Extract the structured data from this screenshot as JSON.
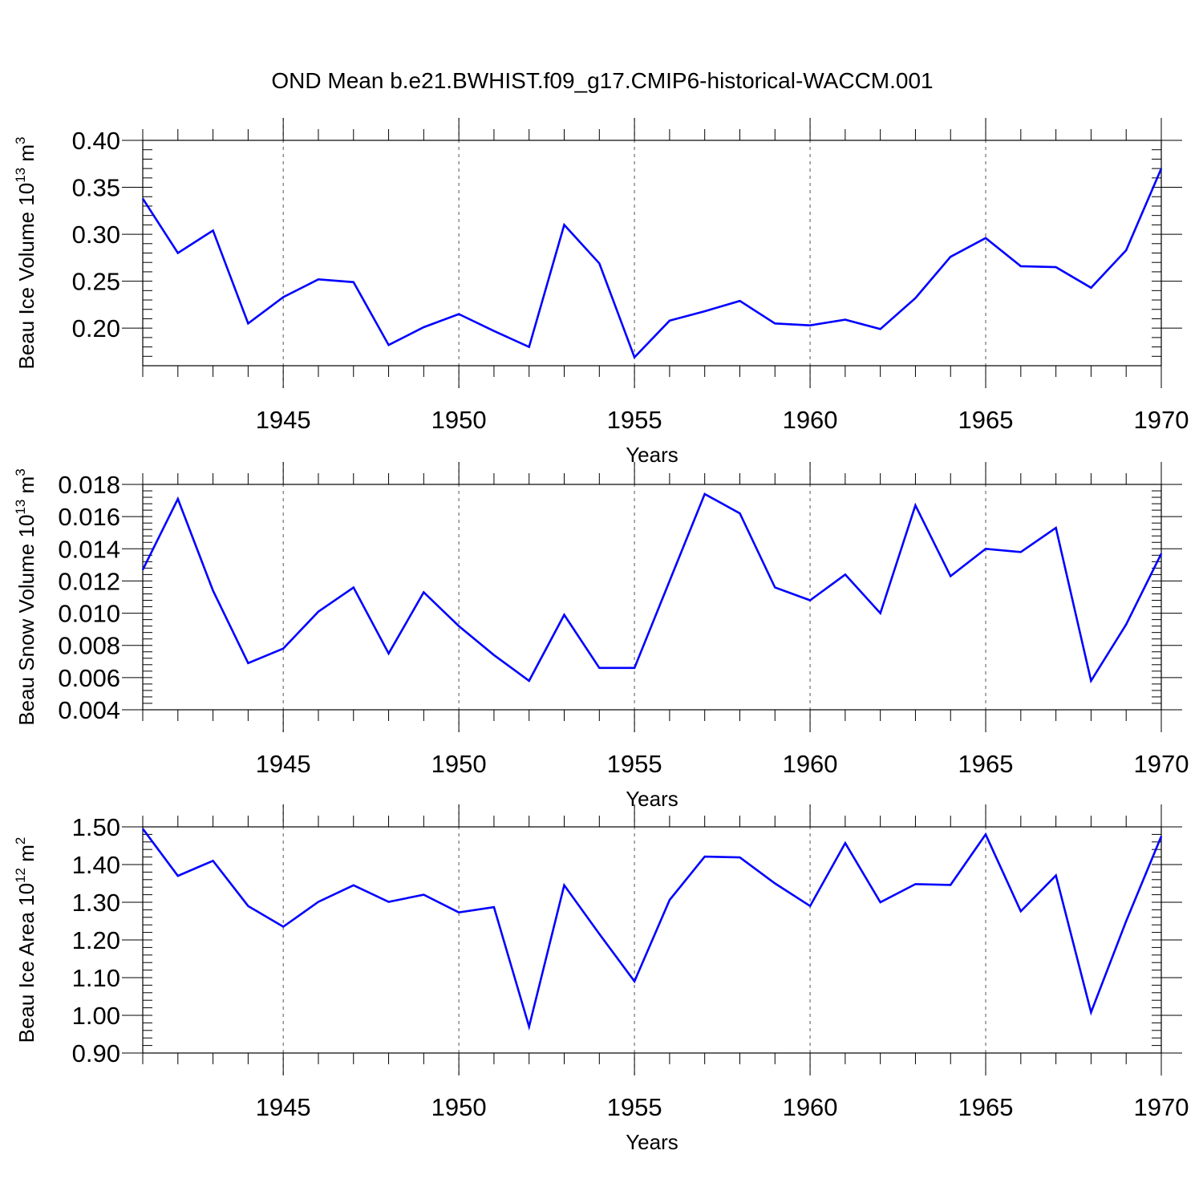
{
  "title": "OND Mean b.e21.BWHIST.f09_g17.CMIP6-historical-WACCM.001",
  "line_color": "#0000ff",
  "chart_data": [
    {
      "type": "line",
      "ylabel_main": "Beau Ice Volume 10",
      "ylabel_exp": "13",
      "ylabel_unit": " m",
      "ylabel_unit_exp": "3",
      "xlabel": "Years",
      "xlim": [
        1941,
        1970
      ],
      "ylim": [
        0.16,
        0.4
      ],
      "yticks": [
        0.2,
        0.25,
        0.3,
        0.35,
        0.4
      ],
      "ytick_labels": [
        "0.20",
        "0.25",
        "0.30",
        "0.35",
        "0.40"
      ],
      "xticks": [
        1945,
        1950,
        1955,
        1960,
        1965,
        1970
      ],
      "xtick_labels": [
        "1945",
        "1950",
        "1955",
        "1960",
        "1965",
        "1970"
      ],
      "x": [
        1941,
        1942,
        1943,
        1944,
        1945,
        1946,
        1947,
        1948,
        1949,
        1950,
        1951,
        1952,
        1953,
        1954,
        1955,
        1956,
        1957,
        1958,
        1959,
        1960,
        1961,
        1962,
        1963,
        1964,
        1965,
        1966,
        1967,
        1968,
        1969,
        1970
      ],
      "values": [
        0.338,
        0.28,
        0.304,
        0.205,
        0.233,
        0.252,
        0.249,
        0.182,
        0.201,
        0.215,
        0.197,
        0.18,
        0.31,
        0.269,
        0.169,
        0.208,
        0.218,
        0.229,
        0.205,
        0.203,
        0.209,
        0.199,
        0.232,
        0.276,
        0.296,
        0.266,
        0.265,
        0.243,
        0.283,
        0.37
      ]
    },
    {
      "type": "line",
      "ylabel_main": "Beau Snow Volume 10",
      "ylabel_exp": "13",
      "ylabel_unit": " m",
      "ylabel_unit_exp": "3",
      "xlabel": "Years",
      "xlim": [
        1941,
        1970
      ],
      "ylim": [
        0.004,
        0.018
      ],
      "yticks": [
        0.004,
        0.006,
        0.008,
        0.01,
        0.012,
        0.014,
        0.016,
        0.018
      ],
      "ytick_labels": [
        "0.004",
        "0.006",
        "0.008",
        "0.010",
        "0.012",
        "0.014",
        "0.016",
        "0.018"
      ],
      "xticks": [
        1945,
        1950,
        1955,
        1960,
        1965,
        1970
      ],
      "xtick_labels": [
        "1945",
        "1950",
        "1955",
        "1960",
        "1965",
        "1970"
      ],
      "x": [
        1941,
        1942,
        1943,
        1944,
        1945,
        1946,
        1947,
        1948,
        1949,
        1950,
        1951,
        1952,
        1953,
        1954,
        1955,
        1956,
        1957,
        1958,
        1959,
        1960,
        1961,
        1962,
        1963,
        1964,
        1965,
        1966,
        1967,
        1968,
        1969,
        1970
      ],
      "values": [
        0.0127,
        0.0171,
        0.0114,
        0.0069,
        0.0078,
        0.0101,
        0.0116,
        0.0075,
        0.0113,
        0.0092,
        0.0074,
        0.0058,
        0.0099,
        0.0066,
        0.0066,
        0.012,
        0.0174,
        0.0162,
        0.0116,
        0.0108,
        0.0124,
        0.01,
        0.0167,
        0.0123,
        0.014,
        0.0138,
        0.0153,
        0.0058,
        0.0093,
        0.0137
      ]
    },
    {
      "type": "line",
      "ylabel_main": "Beau Ice Area 10",
      "ylabel_exp": "12",
      "ylabel_unit": " m",
      "ylabel_unit_exp": "2",
      "xlabel": "Years",
      "xlim": [
        1941,
        1970
      ],
      "ylim": [
        0.9,
        1.5
      ],
      "yticks": [
        0.9,
        1.0,
        1.1,
        1.2,
        1.3,
        1.4,
        1.5
      ],
      "ytick_labels": [
        "0.90",
        "1.00",
        "1.10",
        "1.20",
        "1.30",
        "1.40",
        "1.50"
      ],
      "xticks": [
        1945,
        1950,
        1955,
        1960,
        1965,
        1970
      ],
      "xtick_labels": [
        "1945",
        "1950",
        "1955",
        "1960",
        "1965",
        "1970"
      ],
      "x": [
        1941,
        1942,
        1943,
        1944,
        1945,
        1946,
        1947,
        1948,
        1949,
        1950,
        1951,
        1952,
        1953,
        1954,
        1955,
        1956,
        1957,
        1958,
        1959,
        1960,
        1961,
        1962,
        1963,
        1964,
        1965,
        1966,
        1967,
        1968,
        1969,
        1970
      ],
      "values": [
        1.495,
        1.37,
        1.41,
        1.29,
        1.235,
        1.301,
        1.345,
        1.301,
        1.32,
        1.273,
        1.287,
        0.97,
        1.345,
        1.216,
        1.09,
        1.306,
        1.421,
        1.419,
        1.35,
        1.29,
        1.457,
        1.3,
        1.348,
        1.346,
        1.48,
        1.276,
        1.371,
        1.008,
        1.25,
        1.475
      ]
    }
  ]
}
